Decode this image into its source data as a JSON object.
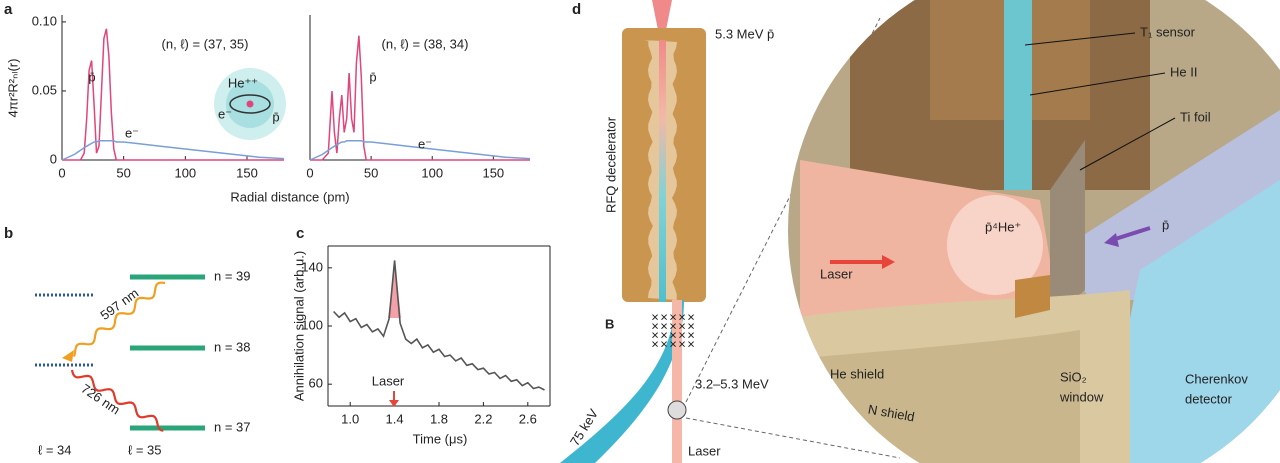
{
  "figure_labels": [
    "a",
    "b",
    "c",
    "d"
  ],
  "chart_data": [
    {
      "type": "line",
      "ylabel": "4πr²R²ₙₗ(r)",
      "xlabel": "Radial distance (pm)",
      "annotations": [
        "(n, ℓ) = (37, 35)",
        "He⁺⁺",
        "e⁻",
        "p̄"
      ],
      "x": [
        0,
        10,
        15,
        18,
        20,
        22,
        24,
        26,
        28,
        30,
        32,
        34,
        36,
        38,
        40,
        42,
        44,
        46,
        50,
        60,
        80,
        100,
        120,
        140,
        160,
        180
      ],
      "series": [
        {
          "name": "p̄",
          "color": "#e0457b",
          "values": [
            0,
            0,
            0,
            0.005,
            0.03,
            0.065,
            0.072,
            0.04,
            0.005,
            0.01,
            0.05,
            0.088,
            0.095,
            0.075,
            0.035,
            0.008,
            0,
            0,
            0,
            0,
            0,
            0,
            0,
            0,
            0,
            0
          ]
        },
        {
          "name": "e⁻",
          "color": "#7a9fd6",
          "values": [
            0,
            0.004,
            0.007,
            0.009,
            0.01,
            0.011,
            0.012,
            0.013,
            0.013,
            0.014,
            0.014,
            0.014,
            0.014,
            0.014,
            0.014,
            0.014,
            0.013,
            0.013,
            0.013,
            0.012,
            0.01,
            0.008,
            0.006,
            0.004,
            0.002,
            0.001
          ]
        }
      ],
      "xlim": [
        0,
        180
      ],
      "xticks": [
        0,
        50,
        100,
        150
      ],
      "ylim": [
        0,
        0.105
      ],
      "yticks": [
        0,
        0.05,
        {
          "value": 0.1,
          "label": "0.10"
        }
      ]
    },
    {
      "type": "line",
      "annotations": [
        "(n, ℓ) = (38, 34)"
      ],
      "x": [
        0,
        10,
        15,
        18,
        20,
        22,
        24,
        26,
        28,
        30,
        32,
        34,
        36,
        38,
        40,
        42,
        44,
        46,
        50,
        60,
        80,
        100,
        120,
        140,
        160,
        180
      ],
      "series": [
        {
          "name": "p̄",
          "color": "#e0457b",
          "values": [
            0,
            0,
            0.005,
            0.05,
            0.02,
            0.005,
            0.03,
            0.047,
            0.02,
            0.03,
            0.063,
            0.03,
            0.02,
            0.07,
            0.09,
            0.06,
            0.01,
            0,
            0,
            0,
            0,
            0,
            0,
            0,
            0,
            0
          ]
        },
        {
          "name": "e⁻",
          "color": "#7a9fd6",
          "values": [
            0,
            0.004,
            0.007,
            0.009,
            0.01,
            0.011,
            0.012,
            0.013,
            0.013,
            0.014,
            0.014,
            0.014,
            0.014,
            0.014,
            0.014,
            0.014,
            0.013,
            0.013,
            0.013,
            0.012,
            0.01,
            0.008,
            0.006,
            0.004,
            0.002,
            0.001
          ]
        }
      ],
      "xlim": [
        0,
        180
      ],
      "xticks": [
        0,
        50,
        100,
        150
      ],
      "ylim": [
        0,
        0.105
      ]
    },
    {
      "type": "line",
      "ylabel": "Annihilation signal (arb.u.)",
      "xlabel": "Time (μs)",
      "annotations": [
        "Laser"
      ],
      "x": [
        0.85,
        0.9,
        0.95,
        1.0,
        1.05,
        1.1,
        1.15,
        1.2,
        1.25,
        1.3,
        1.35,
        1.4,
        1.45,
        1.5,
        1.55,
        1.6,
        1.65,
        1.7,
        1.75,
        1.8,
        1.85,
        1.9,
        1.95,
        2.0,
        2.05,
        2.1,
        2.15,
        2.2,
        2.25,
        2.3,
        2.35,
        2.4,
        2.45,
        2.5,
        2.55,
        2.6,
        2.65,
        2.7,
        2.75
      ],
      "series": [
        {
          "name": null,
          "color": "#555555",
          "values": [
            110,
            106,
            109,
            103,
            105,
            99,
            101,
            96,
            98,
            93,
            105,
            145,
            102,
            91,
            88,
            91,
            85,
            87,
            82,
            84,
            79,
            80,
            76,
            78,
            73,
            74,
            70,
            71,
            67,
            68,
            64,
            66,
            62,
            63,
            59,
            61,
            57,
            58,
            56
          ]
        }
      ],
      "xlim": [
        0.8,
        2.8
      ],
      "xticks": [
        {
          "value": 1.0,
          "label": "1.0"
        },
        1.4,
        1.8,
        2.2,
        2.6
      ],
      "ylim": [
        45,
        155
      ],
      "yticks": [
        60,
        100,
        140
      ]
    }
  ],
  "panel_b": {
    "levels": [
      "n = 39",
      "n = 38",
      "n = 37"
    ],
    "transitions": [
      "597 nm",
      "726 nm"
    ],
    "angular": [
      "ℓ = 34",
      "ℓ = 35"
    ]
  },
  "panel_d": {
    "labels": [
      "5.3 MeV p̄",
      "RFQ decelerator",
      "B",
      "3.2–5.3 MeV",
      "75 keV",
      "Laser",
      "T₁ sensor",
      "He II",
      "Ti foil",
      "p̄",
      "p̄⁴He⁺",
      "Laser",
      "He shield",
      "N shield",
      "SiO₂",
      "window",
      "Cherenkov",
      "detector"
    ]
  }
}
